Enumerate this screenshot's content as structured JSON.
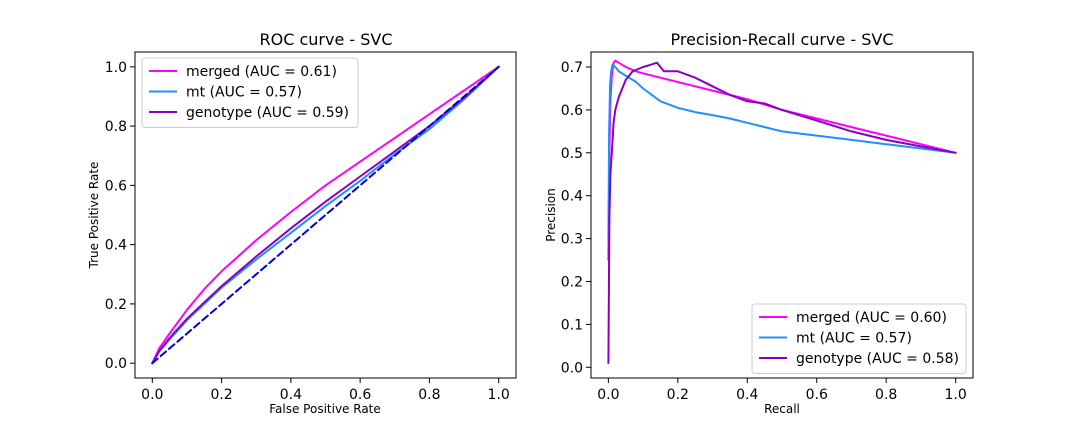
{
  "chart_data": [
    {
      "type": "line",
      "title": "ROC curve - SVC",
      "xlabel": "False Positive Rate",
      "ylabel": "True Positive Rate",
      "xlim": [
        -0.05,
        1.05
      ],
      "ylim": [
        -0.05,
        1.05
      ],
      "xticks": [
        "0.0",
        "0.2",
        "0.4",
        "0.6",
        "0.8",
        "1.0"
      ],
      "yticks": [
        "0.0",
        "0.2",
        "0.4",
        "0.6",
        "0.8",
        "1.0"
      ],
      "grid": false,
      "legend_position": "upper-left",
      "series": [
        {
          "name": "merged (AUC = 0.61)",
          "color": "#ff00ff",
          "x": [
            0.0,
            0.02,
            0.05,
            0.1,
            0.15,
            0.2,
            0.3,
            0.4,
            0.5,
            0.6,
            0.7,
            0.8,
            0.9,
            1.0
          ],
          "y": [
            0.0,
            0.05,
            0.1,
            0.18,
            0.25,
            0.31,
            0.415,
            0.51,
            0.6,
            0.68,
            0.76,
            0.84,
            0.92,
            1.0
          ]
        },
        {
          "name": "mt (AUC = 0.57)",
          "color": "#1e90ff",
          "x": [
            0.0,
            0.02,
            0.05,
            0.1,
            0.15,
            0.2,
            0.3,
            0.4,
            0.5,
            0.6,
            0.7,
            0.8,
            0.9,
            1.0
          ],
          "y": [
            0.0,
            0.04,
            0.08,
            0.145,
            0.2,
            0.255,
            0.35,
            0.44,
            0.53,
            0.615,
            0.705,
            0.79,
            0.89,
            1.0
          ]
        },
        {
          "name": "genotype (AUC = 0.59)",
          "color": "#8a00c2",
          "x": [
            0.0,
            0.02,
            0.05,
            0.1,
            0.15,
            0.2,
            0.3,
            0.4,
            0.5,
            0.6,
            0.7,
            0.8,
            0.9,
            1.0
          ],
          "y": [
            0.0,
            0.04,
            0.085,
            0.15,
            0.205,
            0.26,
            0.36,
            0.455,
            0.545,
            0.63,
            0.715,
            0.8,
            0.895,
            1.0
          ]
        },
        {
          "name": "",
          "color": "#0000dd",
          "dashed": true,
          "x": [
            0.0,
            1.0
          ],
          "y": [
            0.0,
            1.0
          ]
        }
      ]
    },
    {
      "type": "line",
      "title": "Precision-Recall curve - SVC",
      "xlabel": "Recall",
      "ylabel": "Precision",
      "xlim": [
        -0.05,
        1.05
      ],
      "ylim": [
        -0.025,
        0.735
      ],
      "xticks": [
        "0.0",
        "0.2",
        "0.4",
        "0.6",
        "0.8",
        "1.0"
      ],
      "yticks": [
        "0.0",
        "0.1",
        "0.2",
        "0.3",
        "0.4",
        "0.5",
        "0.6",
        "0.7"
      ],
      "grid": false,
      "legend_position": "lower-right",
      "series": [
        {
          "name": "merged (AUC = 0.60)",
          "color": "#ff00ff",
          "x": [
            0.0,
            0.003,
            0.006,
            0.01,
            0.015,
            0.02,
            0.03,
            0.05,
            0.08,
            0.1,
            0.15,
            0.2,
            0.25,
            0.3,
            0.35,
            0.4,
            0.5,
            0.6,
            0.7,
            0.8,
            0.9,
            1.0
          ],
          "y": [
            0.25,
            0.5,
            0.62,
            0.68,
            0.71,
            0.715,
            0.71,
            0.7,
            0.69,
            0.685,
            0.675,
            0.665,
            0.655,
            0.645,
            0.635,
            0.625,
            0.6,
            0.58,
            0.56,
            0.54,
            0.52,
            0.5
          ]
        },
        {
          "name": "mt (AUC = 0.57)",
          "color": "#1e90ff",
          "x": [
            0.0,
            0.002,
            0.005,
            0.008,
            0.012,
            0.02,
            0.03,
            0.05,
            0.08,
            0.1,
            0.15,
            0.2,
            0.25,
            0.3,
            0.35,
            0.4,
            0.5,
            0.6,
            0.7,
            0.8,
            0.9,
            1.0
          ],
          "y": [
            0.3,
            0.55,
            0.66,
            0.69,
            0.705,
            0.7,
            0.69,
            0.68,
            0.665,
            0.65,
            0.62,
            0.605,
            0.595,
            0.588,
            0.58,
            0.57,
            0.55,
            0.54,
            0.53,
            0.52,
            0.51,
            0.5
          ]
        },
        {
          "name": "genotype (AUC = 0.58)",
          "color": "#8a00c2",
          "x": [
            0.0,
            0.003,
            0.006,
            0.01,
            0.015,
            0.02,
            0.03,
            0.04,
            0.05,
            0.07,
            0.1,
            0.12,
            0.14,
            0.16,
            0.2,
            0.25,
            0.3,
            0.35,
            0.4,
            0.45,
            0.5,
            0.6,
            0.7,
            0.8,
            0.9,
            1.0
          ],
          "y": [
            0.01,
            0.35,
            0.45,
            0.5,
            0.57,
            0.6,
            0.63,
            0.65,
            0.67,
            0.69,
            0.7,
            0.705,
            0.71,
            0.69,
            0.69,
            0.675,
            0.655,
            0.635,
            0.62,
            0.615,
            0.6,
            0.575,
            0.55,
            0.53,
            0.515,
            0.5
          ]
        }
      ]
    }
  ]
}
